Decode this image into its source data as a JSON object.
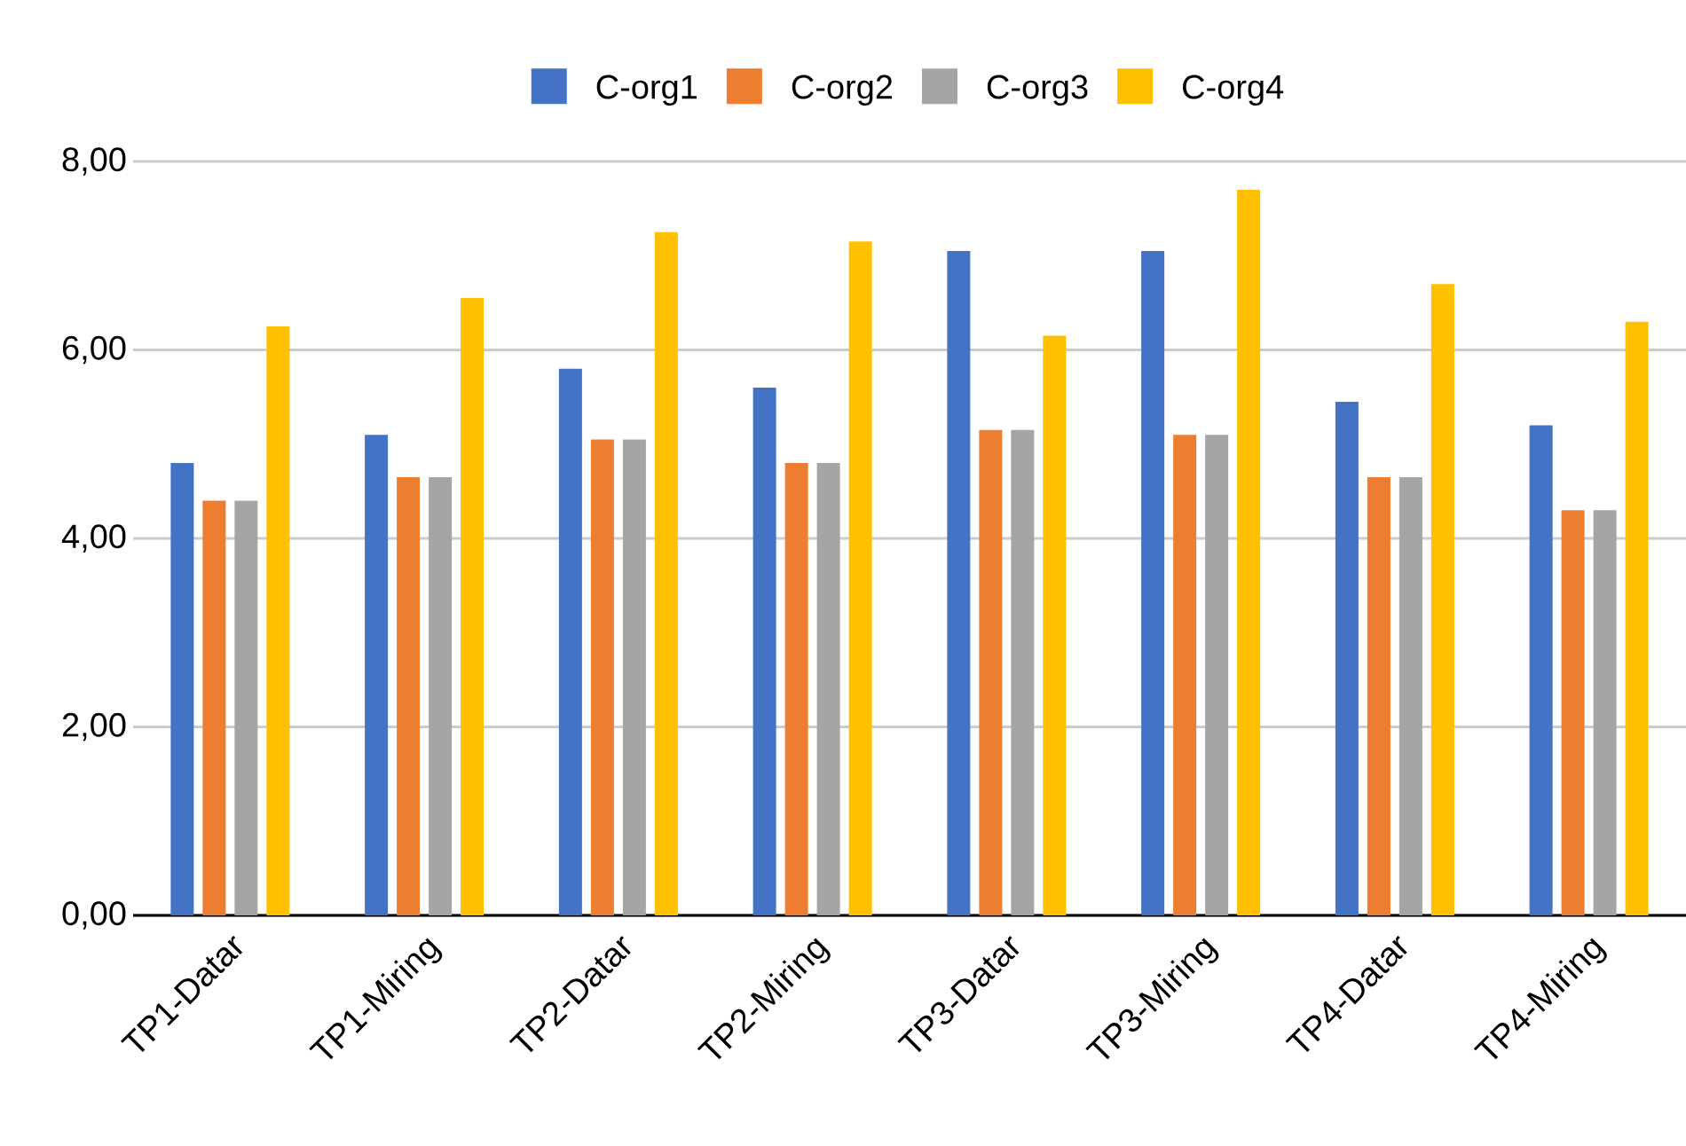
{
  "chart_data": {
    "type": "bar",
    "categories": [
      "TP1-Datar",
      "TP1-Miring",
      "TP2-Datar",
      "TP2-Miring",
      "TP3-Datar",
      "TP3-Miring",
      "TP4-Datar",
      "TP4-Miring"
    ],
    "series": [
      {
        "name": "C-org1",
        "color": "#4472c4",
        "values": [
          4.8,
          5.1,
          5.8,
          5.6,
          7.05,
          7.05,
          5.45,
          5.2
        ]
      },
      {
        "name": "C-org2",
        "color": "#ed7d31",
        "values": [
          4.4,
          4.65,
          5.05,
          4.8,
          5.15,
          5.1,
          4.65,
          4.3
        ]
      },
      {
        "name": "C-org3",
        "color": "#a5a5a5",
        "values": [
          4.4,
          4.65,
          5.05,
          4.8,
          5.15,
          5.1,
          4.65,
          4.3
        ]
      },
      {
        "name": "C-org4",
        "color": "#ffc000",
        "values": [
          6.25,
          6.55,
          7.25,
          7.15,
          6.15,
          7.7,
          6.7,
          6.3
        ]
      }
    ],
    "ylim": [
      0,
      8
    ],
    "yticks": [
      {
        "value": 0,
        "label": "0,00"
      },
      {
        "value": 2,
        "label": "2,00"
      },
      {
        "value": 4,
        "label": "4,00"
      },
      {
        "value": 6,
        "label": "6,00"
      },
      {
        "value": 8,
        "label": "8,00"
      }
    ],
    "grid": "y",
    "legend": "top"
  }
}
